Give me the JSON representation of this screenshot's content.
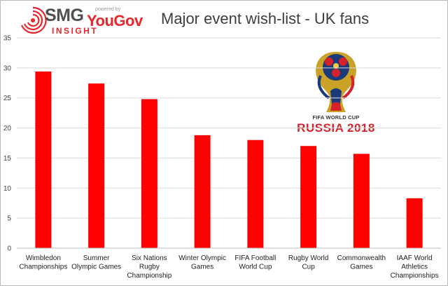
{
  "header": {
    "title": "Major event wish-list - UK fans"
  },
  "logo": {
    "brand_smg": "SMG",
    "powered_by": "powered by",
    "brand_yougov": "YouGov",
    "brand_insight": "INSIGHT"
  },
  "badge": {
    "caption": "FIFA WORLD CUP",
    "event": "RUSSIA 2018"
  },
  "colors": {
    "bar": "#ff0000",
    "gridline": "#d9d9d9",
    "axis": "#bfbfbf",
    "title": "#3d3d3d",
    "brand_red": "#e8262b"
  },
  "chart_data": {
    "type": "bar",
    "title": "Major event wish-list - UK fans",
    "xlabel": "",
    "ylabel": "",
    "ylim": [
      0,
      35
    ],
    "yticks": [
      0,
      5,
      10,
      15,
      20,
      25,
      30,
      35
    ],
    "grid": true,
    "legend": "none",
    "categories": [
      [
        "Wimbledon",
        "Championships"
      ],
      [
        "Summer",
        "Olympic Games"
      ],
      [
        "Six Nations",
        "Rugby",
        "Championship"
      ],
      [
        "Winter Olympic",
        "Games"
      ],
      [
        "FIFA Football",
        "World Cup"
      ],
      [
        "Rugby World",
        "Cup"
      ],
      [
        "Commonwealth",
        "Games"
      ],
      [
        "IAAF World",
        "Athletics",
        "Championships"
      ]
    ],
    "values": [
      29.4,
      27.4,
      24.8,
      18.8,
      18.0,
      17.0,
      15.7,
      8.3
    ]
  }
}
